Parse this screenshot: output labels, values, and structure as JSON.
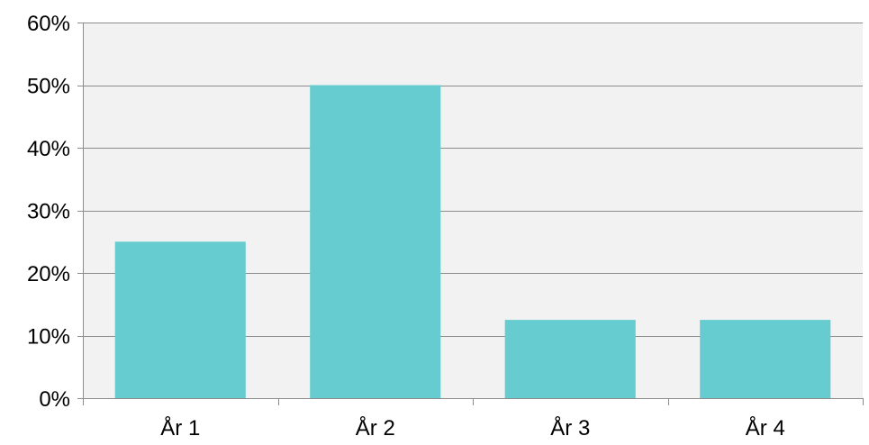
{
  "chart_data": {
    "type": "bar",
    "title": "",
    "xlabel": "",
    "ylabel": "",
    "categories": [
      "År 1",
      "År 2",
      "År 3",
      "År 4"
    ],
    "values": [
      0.25,
      0.5,
      0.125,
      0.125
    ],
    "ylim": [
      0,
      0.6
    ],
    "yticks": [
      0,
      0.1,
      0.2,
      0.3,
      0.4,
      0.5,
      0.6
    ],
    "ytick_labels": [
      "0%",
      "10%",
      "20%",
      "30%",
      "40%",
      "50%",
      "60%"
    ],
    "grid": true,
    "legend": "none",
    "colors": {
      "bar": "#66cccf",
      "plot_background": "#f2f2f2",
      "gridline": "#8c8c8c",
      "axis": "#8c8c8c"
    }
  }
}
